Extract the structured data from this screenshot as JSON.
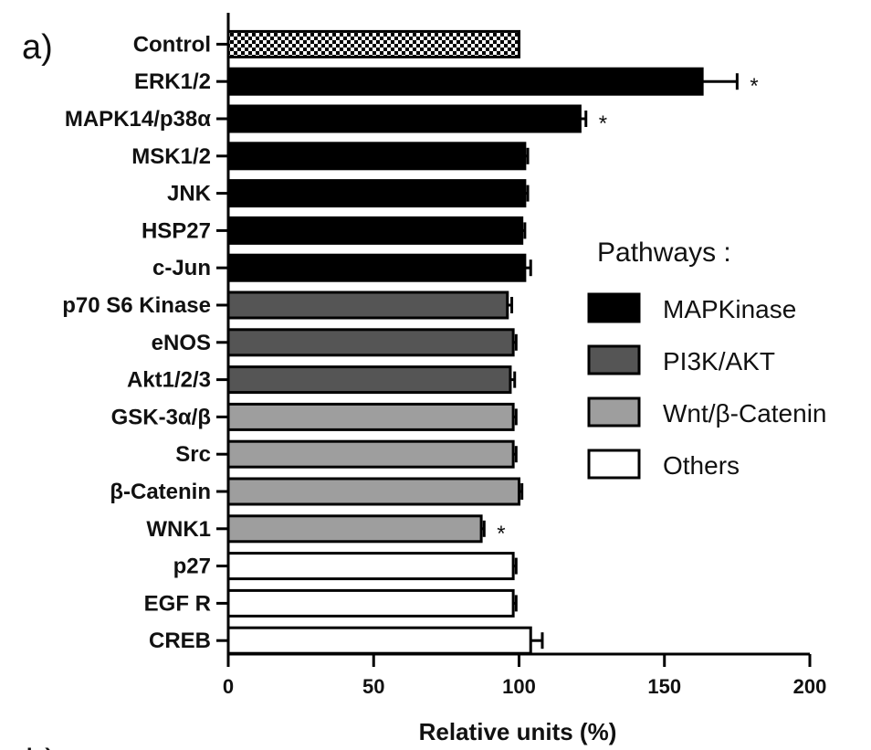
{
  "chart_data": {
    "type": "bar",
    "orientation": "horizontal",
    "panel_label_top": "a)",
    "panel_label_bottom": "b)",
    "xlabel": "Relative units (%)",
    "xlim": [
      0,
      200
    ],
    "xticks": [
      0,
      50,
      100,
      150,
      200
    ],
    "legend": {
      "title": "Pathways :",
      "placement": "right",
      "entries": [
        {
          "label": "MAPKinase",
          "color": "#000000"
        },
        {
          "label": "PI3K/AKT",
          "color": "#555555"
        },
        {
          "label": "Wnt/β-Catenin",
          "color": "#9e9e9e"
        },
        {
          "label": "Others",
          "color": "#ffffff"
        }
      ]
    },
    "bars": [
      {
        "label": "Control",
        "value": 100,
        "error": 0,
        "group": "control",
        "significant": false
      },
      {
        "label": "ERK1/2",
        "value": 163,
        "error": 12,
        "group": "MAPKinase",
        "significant": true
      },
      {
        "label": "MAPK14/p38α",
        "value": 121,
        "error": 2,
        "group": "MAPKinase",
        "significant": true
      },
      {
        "label": "MSK1/2",
        "value": 102,
        "error": 1,
        "group": "MAPKinase",
        "significant": false
      },
      {
        "label": "JNK",
        "value": 102,
        "error": 1,
        "group": "MAPKinase",
        "significant": false
      },
      {
        "label": "HSP27",
        "value": 101,
        "error": 1,
        "group": "MAPKinase",
        "significant": false
      },
      {
        "label": "c-Jun",
        "value": 102,
        "error": 2,
        "group": "MAPKinase",
        "significant": false
      },
      {
        "label": "p70 S6 Kinase",
        "value": 96,
        "error": 1.5,
        "group": "PI3K/AKT",
        "significant": false
      },
      {
        "label": "eNOS",
        "value": 98,
        "error": 1,
        "group": "PI3K/AKT",
        "significant": false
      },
      {
        "label": "Akt1/2/3",
        "value": 97,
        "error": 1.5,
        "group": "PI3K/AKT",
        "significant": false
      },
      {
        "label": "GSK-3α/β",
        "value": 98,
        "error": 1,
        "group": "Wnt/β-Catenin",
        "significant": false
      },
      {
        "label": "Src",
        "value": 98,
        "error": 1,
        "group": "Wnt/β-Catenin",
        "significant": false
      },
      {
        "label": "β-Catenin",
        "value": 100,
        "error": 1,
        "group": "Wnt/β-Catenin",
        "significant": false
      },
      {
        "label": "WNK1",
        "value": 87,
        "error": 1,
        "group": "Wnt/β-Catenin",
        "significant": true
      },
      {
        "label": "p27",
        "value": 98,
        "error": 1,
        "group": "Others",
        "significant": false
      },
      {
        "label": "EGF R",
        "value": 98,
        "error": 1,
        "group": "Others",
        "significant": false
      },
      {
        "label": "CREB",
        "value": 104,
        "error": 4,
        "group": "Others",
        "significant": false
      }
    ],
    "significance_marker": "*",
    "group_colors": {
      "control": "checker",
      "MAPKinase": "#000000",
      "PI3K/AKT": "#555555",
      "Wnt/β-Catenin": "#9e9e9e",
      "Others": "#ffffff"
    }
  }
}
